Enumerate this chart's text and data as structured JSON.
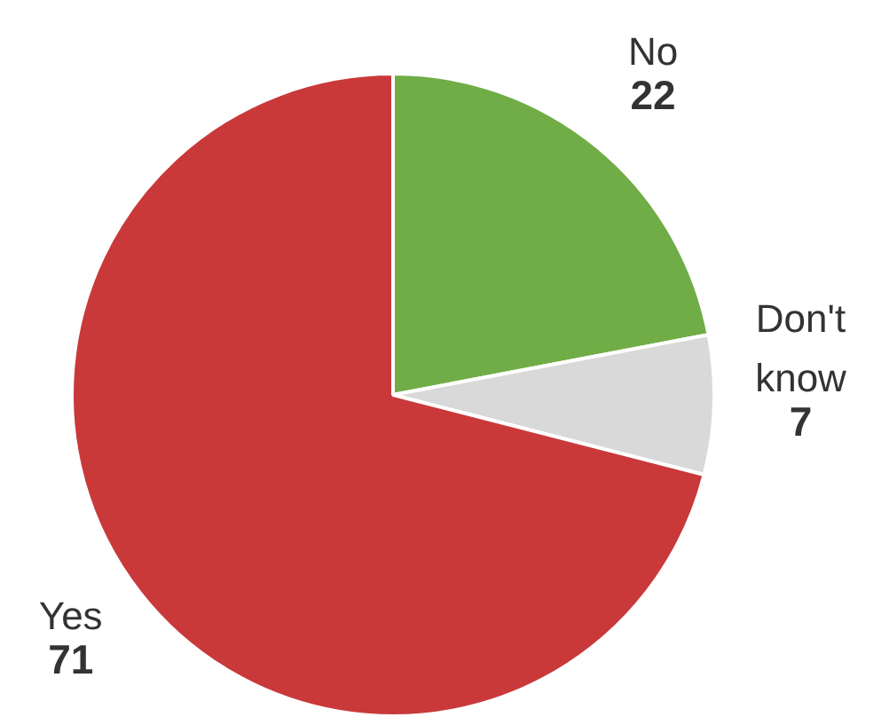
{
  "chart_data": {
    "type": "pie",
    "categories": [
      "No",
      "Don't know",
      "Yes"
    ],
    "values": [
      22,
      7,
      71
    ],
    "colors": [
      "#70ad47",
      "#d9d9d9",
      "#c9393a"
    ],
    "data_labels": true
  }
}
